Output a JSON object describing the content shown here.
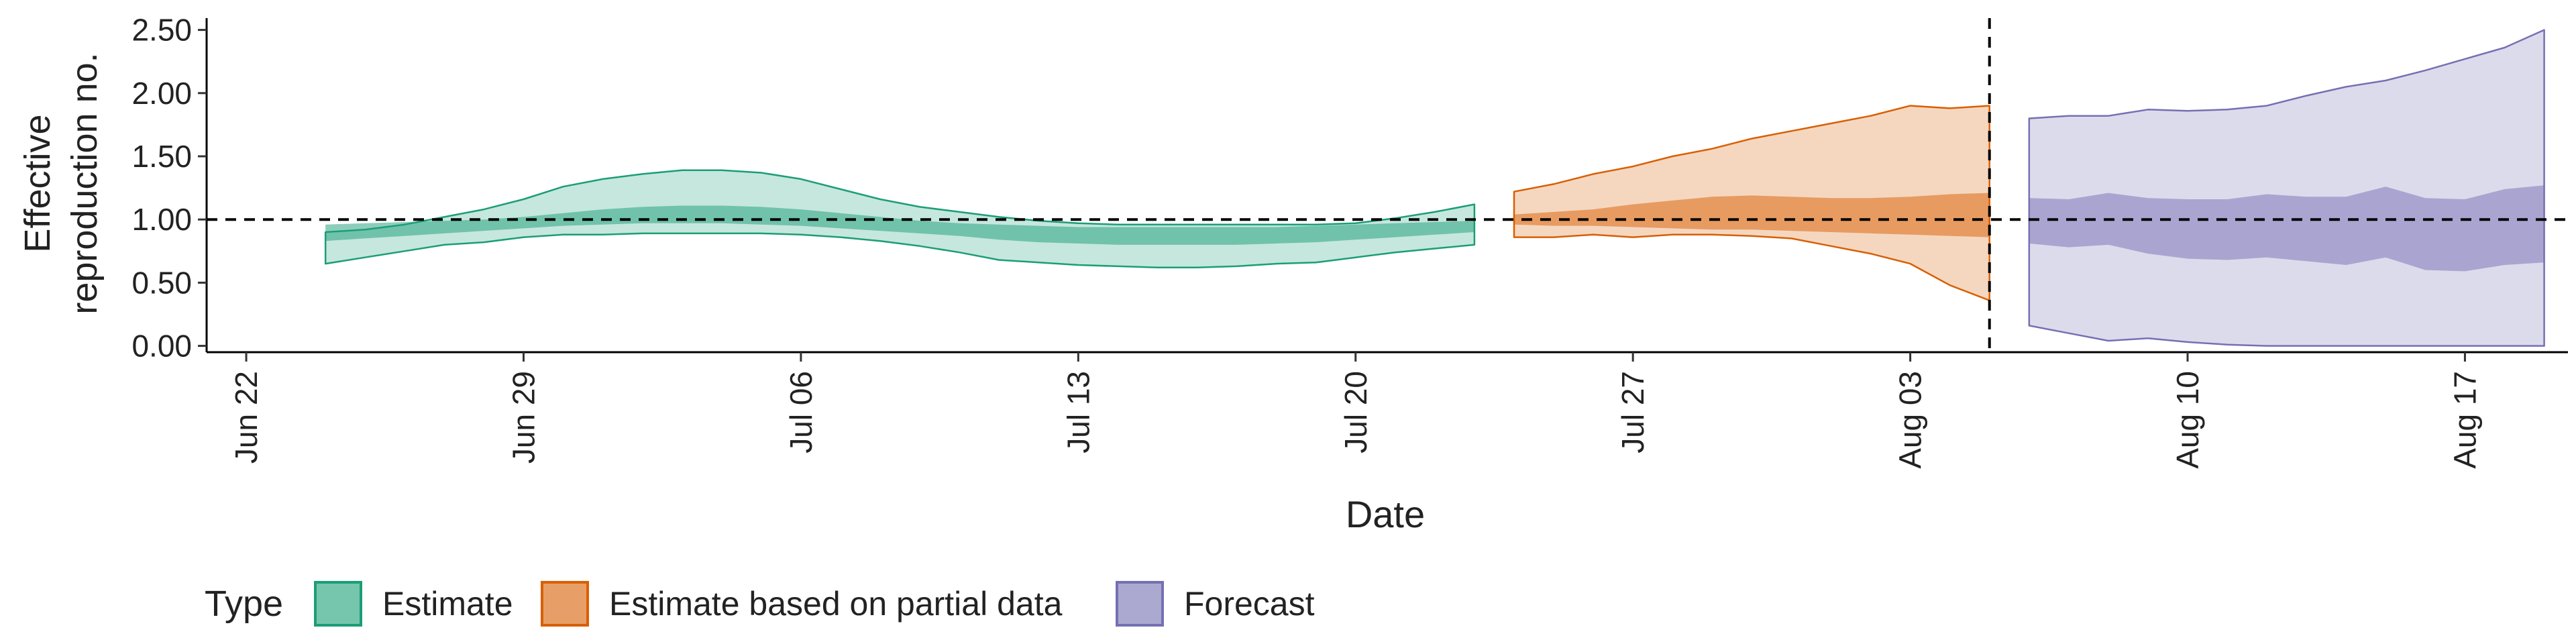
{
  "chart_data": {
    "type": "area",
    "xlabel": "Date",
    "ylabel_lines": [
      "Effective",
      "reproduction no."
    ],
    "ylim": [
      -0.05,
      2.62
    ],
    "x_range_days": [
      -1,
      58.6
    ],
    "x_ticks": [
      {
        "label": "Jun 22",
        "day": 0
      },
      {
        "label": "Jun 29",
        "day": 7
      },
      {
        "label": "Jul 06",
        "day": 14
      },
      {
        "label": "Jul 13",
        "day": 21
      },
      {
        "label": "Jul 20",
        "day": 28
      },
      {
        "label": "Jul 27",
        "day": 35
      },
      {
        "label": "Aug 03",
        "day": 42
      },
      {
        "label": "Aug 10",
        "day": 49
      },
      {
        "label": "Aug 17",
        "day": 56
      }
    ],
    "y_ticks": [
      {
        "label": "0.00",
        "value": 0
      },
      {
        "label": "0.50",
        "value": 0.5
      },
      {
        "label": "1.00",
        "value": 1
      },
      {
        "label": "1.50",
        "value": 1.5
      },
      {
        "label": "2.00",
        "value": 2
      },
      {
        "label": "2.50",
        "value": 2.5
      }
    ],
    "reference_hline": 1.0,
    "reference_vline_day": 44,
    "legend": {
      "title": "Type",
      "position": "bottom",
      "items": [
        {
          "label": "Estimate",
          "color": "#1b9e77"
        },
        {
          "label": "Estimate based on partial data",
          "color": "#d95f02"
        },
        {
          "label": "Forecast",
          "color": "#7570b3"
        }
      ]
    },
    "series": [
      {
        "name": "Estimate",
        "color": "#1b9e77",
        "days": [
          2,
          3,
          4,
          5,
          6,
          7,
          8,
          9,
          10,
          11,
          12,
          13,
          14,
          15,
          16,
          17,
          18,
          19,
          20,
          21,
          22,
          23,
          24,
          25,
          26,
          27,
          28,
          29,
          30,
          31
        ],
        "upper90": [
          0.9,
          0.92,
          0.96,
          1.02,
          1.08,
          1.16,
          1.26,
          1.32,
          1.36,
          1.39,
          1.39,
          1.37,
          1.32,
          1.24,
          1.16,
          1.1,
          1.06,
          1.02,
          0.99,
          0.97,
          0.96,
          0.96,
          0.96,
          0.96,
          0.96,
          0.96,
          0.97,
          1.01,
          1.06,
          1.12
        ],
        "lower90": [
          0.65,
          0.7,
          0.75,
          0.8,
          0.82,
          0.86,
          0.88,
          0.88,
          0.89,
          0.89,
          0.89,
          0.89,
          0.88,
          0.86,
          0.83,
          0.79,
          0.74,
          0.68,
          0.66,
          0.64,
          0.63,
          0.62,
          0.62,
          0.63,
          0.65,
          0.66,
          0.7,
          0.74,
          0.77,
          0.8
        ],
        "upper50": [
          0.96,
          0.97,
          0.98,
          0.99,
          1.0,
          1.02,
          1.05,
          1.08,
          1.1,
          1.11,
          1.11,
          1.1,
          1.08,
          1.05,
          1.02,
          0.99,
          0.97,
          0.96,
          0.95,
          0.94,
          0.94,
          0.94,
          0.94,
          0.94,
          0.94,
          0.95,
          0.96,
          0.97,
          0.98,
          0.99
        ],
        "lower50": [
          0.83,
          0.85,
          0.87,
          0.89,
          0.91,
          0.93,
          0.95,
          0.96,
          0.97,
          0.97,
          0.97,
          0.96,
          0.95,
          0.93,
          0.91,
          0.89,
          0.87,
          0.84,
          0.82,
          0.81,
          0.8,
          0.8,
          0.8,
          0.8,
          0.81,
          0.82,
          0.84,
          0.86,
          0.88,
          0.9
        ]
      },
      {
        "name": "Estimate based on partial data",
        "color": "#d95f02",
        "days": [
          32,
          33,
          34,
          35,
          36,
          37,
          38,
          39,
          40,
          41,
          42,
          43,
          44
        ],
        "upper90": [
          1.22,
          1.28,
          1.36,
          1.42,
          1.5,
          1.56,
          1.64,
          1.7,
          1.76,
          1.82,
          1.9,
          1.88,
          1.9
        ],
        "lower90": [
          0.86,
          0.86,
          0.88,
          0.86,
          0.88,
          0.88,
          0.87,
          0.85,
          0.79,
          0.73,
          0.65,
          0.48,
          0.36
        ],
        "upper50": [
          1.04,
          1.06,
          1.08,
          1.12,
          1.15,
          1.18,
          1.19,
          1.18,
          1.17,
          1.17,
          1.18,
          1.2,
          1.21
        ],
        "lower50": [
          0.96,
          0.95,
          0.95,
          0.94,
          0.93,
          0.92,
          0.92,
          0.91,
          0.9,
          0.89,
          0.88,
          0.87,
          0.86
        ]
      },
      {
        "name": "Forecast",
        "color": "#7570b3",
        "days": [
          45,
          46,
          47,
          48,
          49,
          50,
          51,
          52,
          53,
          54,
          55,
          56,
          57,
          58
        ],
        "upper90": [
          1.8,
          1.82,
          1.82,
          1.87,
          1.86,
          1.87,
          1.9,
          1.98,
          2.05,
          2.1,
          2.18,
          2.27,
          2.36,
          2.5
        ],
        "lower90": [
          0.16,
          0.1,
          0.04,
          0.06,
          0.03,
          0.01,
          0.0,
          0.0,
          0.0,
          0.0,
          0.0,
          0.0,
          0.0,
          0.0
        ],
        "upper50": [
          1.17,
          1.16,
          1.21,
          1.17,
          1.16,
          1.16,
          1.2,
          1.18,
          1.18,
          1.26,
          1.17,
          1.16,
          1.24,
          1.27
        ],
        "lower50": [
          0.81,
          0.78,
          0.8,
          0.73,
          0.69,
          0.68,
          0.7,
          0.67,
          0.64,
          0.7,
          0.6,
          0.59,
          0.64,
          0.66
        ]
      }
    ]
  }
}
